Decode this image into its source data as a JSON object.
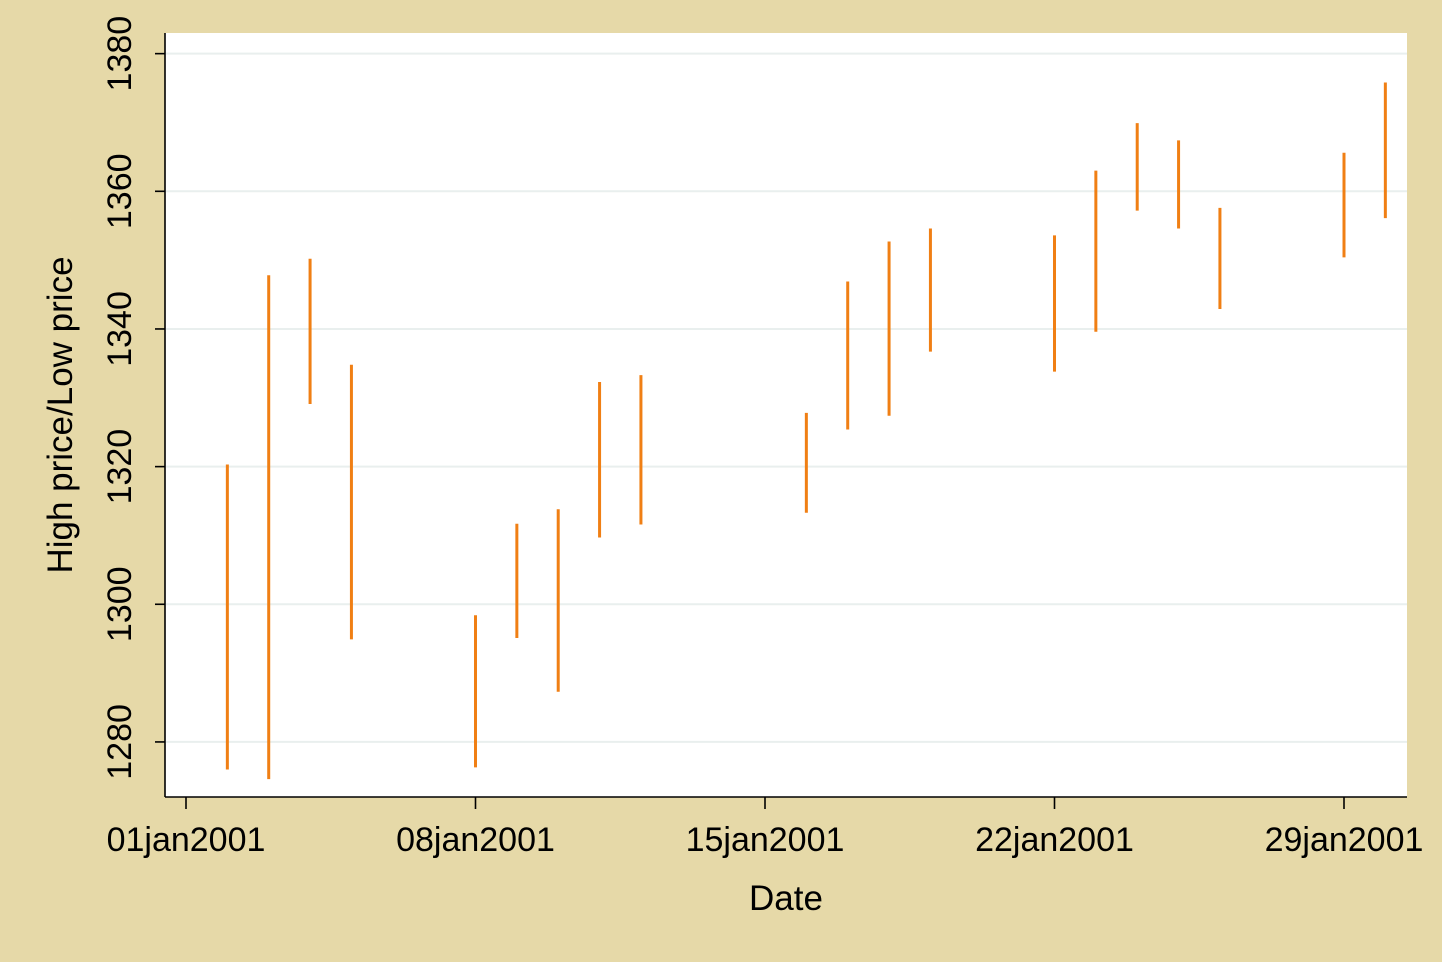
{
  "chart_data": {
    "type": "rspike",
    "xlabel": "Date",
    "ylabel": "High price/Low price",
    "ylim": [
      1272,
      1383
    ],
    "xlim": [
      "2001-01-01",
      "2001-01-29"
    ],
    "yticks": [
      1280,
      1300,
      1320,
      1340,
      1360,
      1380
    ],
    "xticks": [
      {
        "date": "2001-01-01",
        "label": "01jan2001"
      },
      {
        "date": "2001-01-08",
        "label": "08jan2001"
      },
      {
        "date": "2001-01-15",
        "label": "15jan2001"
      },
      {
        "date": "2001-01-22",
        "label": "22jan2001"
      },
      {
        "date": "2001-01-29",
        "label": "29jan2001"
      }
    ],
    "grid": true,
    "colors": {
      "background": "#e6d9a8",
      "plot": "#ffffff",
      "grid": "#e9efee",
      "spike": "#f07f14"
    },
    "series": [
      {
        "points": [
          {
            "date": "2001-01-02",
            "high": 1320.3,
            "low": 1276.0
          },
          {
            "date": "2001-01-03",
            "high": 1347.8,
            "low": 1274.6
          },
          {
            "date": "2001-01-04",
            "high": 1350.2,
            "low": 1329.1
          },
          {
            "date": "2001-01-05",
            "high": 1334.8,
            "low": 1294.9
          },
          {
            "date": "2001-01-08",
            "high": 1298.4,
            "low": 1276.3
          },
          {
            "date": "2001-01-09",
            "high": 1311.7,
            "low": 1295.1
          },
          {
            "date": "2001-01-10",
            "high": 1313.8,
            "low": 1287.3
          },
          {
            "date": "2001-01-11",
            "high": 1332.3,
            "low": 1309.7
          },
          {
            "date": "2001-01-12",
            "high": 1333.3,
            "low": 1311.6
          },
          {
            "date": "2001-01-16",
            "high": 1327.8,
            "low": 1313.3
          },
          {
            "date": "2001-01-17",
            "high": 1346.9,
            "low": 1325.4
          },
          {
            "date": "2001-01-18",
            "high": 1352.7,
            "low": 1327.4
          },
          {
            "date": "2001-01-19",
            "high": 1354.6,
            "low": 1336.7
          },
          {
            "date": "2001-01-22",
            "high": 1353.6,
            "low": 1333.8
          },
          {
            "date": "2001-01-23",
            "high": 1363.0,
            "low": 1339.6
          },
          {
            "date": "2001-01-24",
            "high": 1369.9,
            "low": 1357.2
          },
          {
            "date": "2001-01-25",
            "high": 1367.4,
            "low": 1354.6
          },
          {
            "date": "2001-01-26",
            "high": 1357.6,
            "low": 1342.9
          },
          {
            "date": "2001-01-29",
            "high": 1365.6,
            "low": 1350.4
          },
          {
            "date": "2001-01-30",
            "high": 1375.8,
            "low": 1356.1
          }
        ]
      }
    ]
  }
}
